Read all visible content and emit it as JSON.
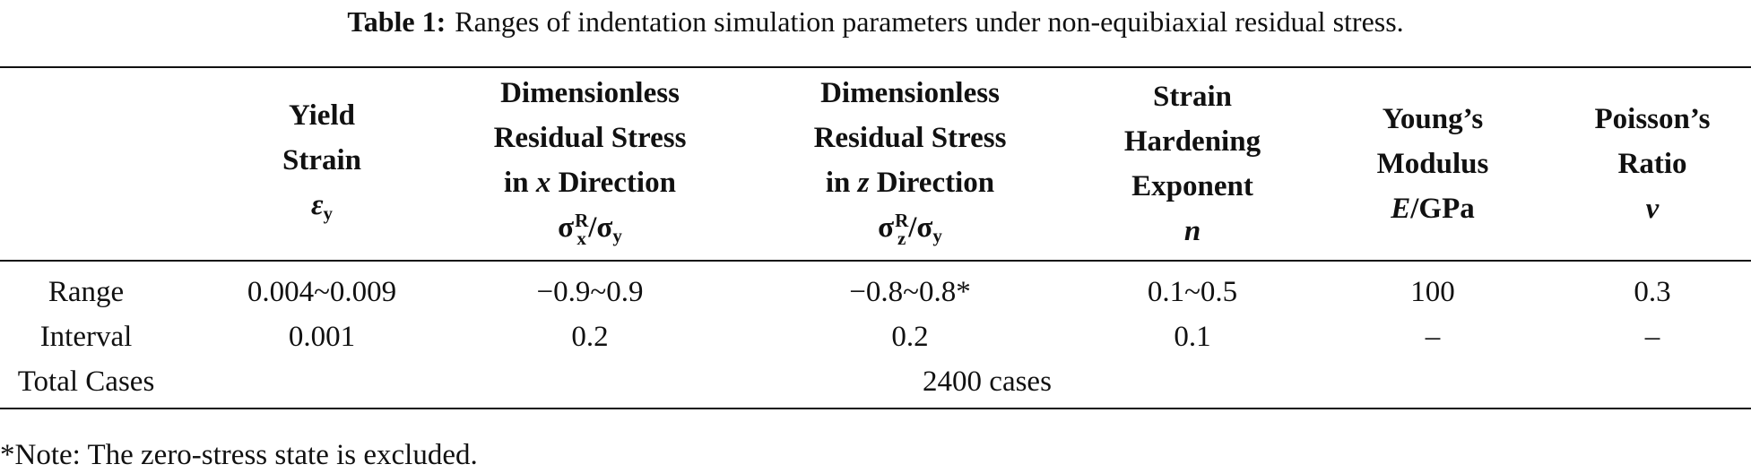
{
  "caption": {
    "label": "Table 1:",
    "text": "Ranges of indentation simulation parameters under non-equibiaxial residual stress."
  },
  "header": [
    {
      "lines": [
        "Yield",
        "Strain"
      ],
      "symbol": [
        "ε",
        "y"
      ]
    },
    {
      "lines": [
        "Dimensionless",
        "Residual Stress"
      ],
      "direction": [
        "in",
        "x",
        "Direction"
      ],
      "symbol": [
        "σ",
        "x",
        "R",
        "/σ",
        "y"
      ]
    },
    {
      "lines": [
        "Dimensionless",
        "Residual Stress"
      ],
      "direction": [
        "in",
        "z",
        "Direction"
      ],
      "symbol": [
        "σ",
        "z",
        "R",
        "/σ",
        "y"
      ]
    },
    {
      "lines": [
        "Strain",
        "Hardening",
        "Exponent"
      ],
      "symbol": [
        "n"
      ]
    },
    {
      "lines": [
        "Young’s",
        "Modulus"
      ],
      "symbol": [
        "E",
        "/GPa"
      ]
    },
    {
      "lines": [
        "Poisson’s",
        "Ratio"
      ],
      "symbol": [
        "ν"
      ]
    }
  ],
  "rows": [
    {
      "label": "Range",
      "cells": [
        "0.004~0.009",
        "−0.9~0.9",
        "−0.8~0.8*",
        "0.1~0.5",
        "100",
        "0.3"
      ]
    },
    {
      "label": "Interval",
      "cells": [
        "0.001",
        "0.2",
        "0.2",
        "0.1",
        "–",
        "–"
      ]
    },
    {
      "label": "Total Cases",
      "cells": [
        "2400 cases"
      ]
    }
  ],
  "note": "*Note: The zero-stress state is excluded."
}
